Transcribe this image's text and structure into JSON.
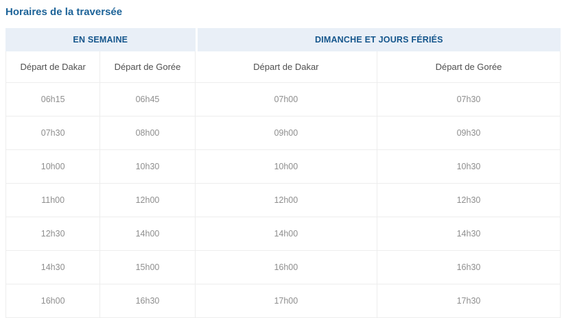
{
  "page": {
    "title": "Horaires de la traversée"
  },
  "schedule_table": {
    "group_headers": [
      {
        "label": "EN SEMAINE"
      },
      {
        "label": "DIMANCHE ET JOURS FÉRIÉS"
      }
    ],
    "column_headers": [
      "Départ de Dakar",
      "Départ de Gorée",
      "Départ de Dakar",
      "Départ de Gorée"
    ],
    "rows": [
      [
        "06h15",
        "06h45",
        "07h00",
        "07h30"
      ],
      [
        "07h30",
        "08h00",
        "09h00",
        "09h30"
      ],
      [
        "10h00",
        "10h30",
        "10h00",
        "10h30"
      ],
      [
        "11h00",
        "12h00",
        "12h00",
        "12h30"
      ],
      [
        "12h30",
        "14h00",
        "14h00",
        "14h30"
      ],
      [
        "14h30",
        "15h00",
        "16h00",
        "16h30"
      ],
      [
        "16h00",
        "16h30",
        "17h00",
        "17h30"
      ]
    ]
  },
  "colors": {
    "title_text": "#1d6398",
    "group_header_bg": "#e9eff7",
    "group_header_text": "#15568c",
    "subheader_text": "#4f4f4f",
    "cell_text": "#8e8e8e",
    "border": "#ededed"
  }
}
